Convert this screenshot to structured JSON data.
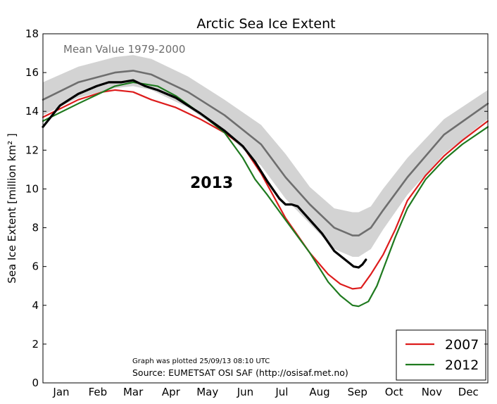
{
  "chart_data": {
    "type": "line",
    "title": "Arctic Sea Ice Extent",
    "ylabel": "Sea Ice Extent [million km² ]",
    "xlabel": "",
    "ylim": [
      0,
      18
    ],
    "y_ticks": [
      0,
      2,
      4,
      6,
      8,
      10,
      12,
      14,
      16,
      18
    ],
    "x_domain": [
      1,
      366
    ],
    "x_tick_labels": [
      "Jan",
      "Feb",
      "Mar",
      "Apr",
      "May",
      "Jun",
      "Jul",
      "Aug",
      "Sep",
      "Oct",
      "Nov",
      "Dec"
    ],
    "x_tick_days": [
      16,
      46,
      75,
      106,
      136,
      167,
      197,
      228,
      259,
      289,
      320,
      350
    ],
    "x_unit": "day of year",
    "grid": false,
    "legend_position": "bottom-right",
    "annotations": {
      "mean_label": "Mean Value 1979-2000",
      "year_label": "2013",
      "plotted_note": "Graph was plotted 25/09/13 08:10 UTC",
      "source_note": "Source: EUMETSAT OSI SAF (http://osisaf.met.no)"
    },
    "band": {
      "color": "#d3d3d3",
      "x": [
        1,
        30,
        60,
        75,
        90,
        120,
        150,
        180,
        200,
        220,
        240,
        255,
        260,
        270,
        280,
        300,
        330,
        366
      ],
      "upper": [
        15.5,
        16.3,
        16.8,
        16.9,
        16.7,
        15.8,
        14.6,
        13.3,
        11.8,
        10.1,
        9.0,
        8.8,
        8.8,
        9.1,
        10.0,
        11.6,
        13.6,
        15.1
      ],
      "lower": [
        13.8,
        14.7,
        15.2,
        15.3,
        15.1,
        14.2,
        12.9,
        11.2,
        9.5,
        8.2,
        6.9,
        6.5,
        6.5,
        6.9,
        7.9,
        9.7,
        11.8,
        13.6
      ]
    },
    "series": [
      {
        "name": "Mean",
        "color": "#6e6e6e",
        "width": 2.6,
        "x": [
          1,
          30,
          60,
          75,
          90,
          120,
          150,
          180,
          200,
          220,
          240,
          255,
          260,
          270,
          280,
          300,
          330,
          366
        ],
        "values": [
          14.6,
          15.5,
          16.0,
          16.1,
          15.9,
          15.0,
          13.8,
          12.3,
          10.6,
          9.2,
          8.0,
          7.6,
          7.6,
          8.0,
          8.9,
          10.6,
          12.8,
          14.4
        ]
      },
      {
        "name": "2007",
        "color": "#dd1c1c",
        "width": 2.2,
        "x": [
          1,
          30,
          50,
          60,
          75,
          90,
          110,
          130,
          150,
          165,
          180,
          200,
          220,
          235,
          245,
          255,
          262,
          270,
          280,
          290,
          300,
          315,
          330,
          345,
          366
        ],
        "values": [
          13.7,
          14.6,
          15.0,
          15.1,
          15.0,
          14.6,
          14.2,
          13.6,
          12.9,
          12.2,
          10.8,
          8.5,
          6.7,
          5.6,
          5.1,
          4.85,
          4.9,
          5.6,
          6.6,
          7.9,
          9.4,
          10.7,
          11.7,
          12.5,
          13.5
        ]
      },
      {
        "name": "2012",
        "color": "#1f7a1f",
        "width": 2.2,
        "x": [
          1,
          30,
          50,
          60,
          75,
          85,
          95,
          110,
          130,
          150,
          165,
          175,
          185,
          200,
          220,
          235,
          245,
          255,
          260,
          268,
          275,
          290,
          300,
          315,
          330,
          345,
          366
        ],
        "values": [
          13.5,
          14.4,
          15.0,
          15.3,
          15.5,
          15.4,
          15.3,
          14.8,
          13.9,
          12.9,
          11.6,
          10.5,
          9.7,
          8.4,
          6.7,
          5.2,
          4.5,
          4.0,
          3.95,
          4.2,
          5.0,
          7.5,
          9.0,
          10.5,
          11.5,
          12.3,
          13.2
        ]
      },
      {
        "name": "2013",
        "color": "#000000",
        "width": 3.2,
        "x": [
          1,
          15,
          30,
          45,
          55,
          65,
          75,
          85,
          95,
          110,
          130,
          150,
          165,
          175,
          185,
          195,
          200,
          205,
          210,
          220,
          230,
          240,
          250,
          256,
          260,
          263,
          266
        ],
        "values": [
          13.2,
          14.3,
          14.9,
          15.3,
          15.5,
          15.5,
          15.6,
          15.3,
          15.1,
          14.7,
          13.9,
          13.0,
          12.2,
          11.4,
          10.4,
          9.5,
          9.2,
          9.2,
          9.1,
          8.4,
          7.7,
          6.8,
          6.3,
          6.0,
          5.95,
          6.1,
          6.35
        ]
      }
    ],
    "legend": [
      {
        "label": "2007",
        "color": "#dd1c1c"
      },
      {
        "label": "2012",
        "color": "#1f7a1f"
      }
    ]
  }
}
